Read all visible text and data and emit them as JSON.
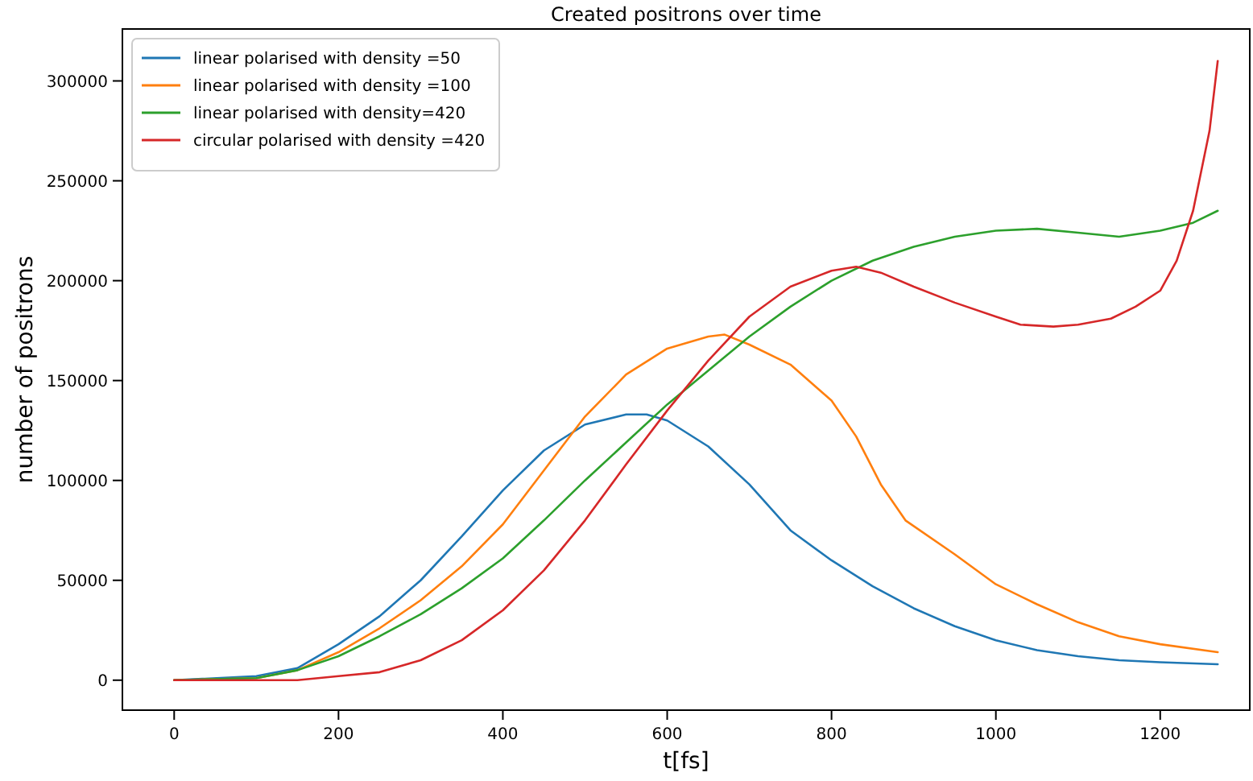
{
  "chart_data": {
    "type": "line",
    "title": "Created positrons over time",
    "xlabel": "t[fs]",
    "ylabel": "number of positrons",
    "xlim": [
      -63,
      1309
    ],
    "ylim": [
      -15000,
      326000
    ],
    "xticks": [
      0,
      200,
      400,
      600,
      800,
      1000,
      1200
    ],
    "yticks": [
      0,
      50000,
      100000,
      150000,
      200000,
      250000,
      300000
    ],
    "grid": false,
    "legend": "top left",
    "marker": "none",
    "line_style": "solid",
    "series": [
      {
        "name": "linear polarised with density =50",
        "color": "#1f77b4",
        "x": [
          0,
          100,
          150,
          200,
          250,
          300,
          350,
          400,
          450,
          500,
          550,
          575,
          600,
          650,
          700,
          750,
          800,
          850,
          900,
          950,
          1000,
          1050,
          1100,
          1150,
          1200,
          1270
        ],
        "values": [
          0,
          2000,
          6000,
          18000,
          32000,
          50000,
          72000,
          95000,
          115000,
          128000,
          133000,
          133000,
          130000,
          117000,
          98000,
          75000,
          60000,
          47000,
          36000,
          27000,
          20000,
          15000,
          12000,
          10000,
          9000,
          8000
        ]
      },
      {
        "name": "linear polarised with density =100",
        "color": "#ff7f0e",
        "x": [
          0,
          100,
          150,
          200,
          250,
          300,
          350,
          400,
          450,
          500,
          550,
          600,
          650,
          670,
          700,
          750,
          800,
          830,
          860,
          890,
          950,
          1000,
          1050,
          1100,
          1150,
          1200,
          1270
        ],
        "values": [
          0,
          1000,
          5000,
          14000,
          26000,
          40000,
          57000,
          78000,
          105000,
          132000,
          153000,
          166000,
          172000,
          173000,
          168000,
          158000,
          140000,
          122000,
          98000,
          80000,
          63000,
          48000,
          38000,
          29000,
          22000,
          18000,
          14000
        ]
      },
      {
        "name": "linear polarised with density=420",
        "color": "#2ca02c",
        "x": [
          0,
          100,
          150,
          200,
          250,
          300,
          350,
          400,
          450,
          500,
          550,
          600,
          650,
          700,
          750,
          800,
          850,
          900,
          950,
          1000,
          1050,
          1100,
          1150,
          1200,
          1240,
          1270
        ],
        "values": [
          0,
          1000,
          5000,
          12000,
          22000,
          33000,
          46000,
          61000,
          80000,
          100000,
          119000,
          138000,
          155000,
          172000,
          187000,
          200000,
          210000,
          217000,
          222000,
          225000,
          226000,
          224000,
          222000,
          225000,
          229000,
          235000
        ]
      },
      {
        "name": "circular polarised with density =420",
        "color": "#d62728",
        "x": [
          0,
          150,
          200,
          250,
          300,
          350,
          400,
          450,
          500,
          550,
          600,
          650,
          700,
          750,
          800,
          830,
          860,
          900,
          950,
          1000,
          1030,
          1070,
          1100,
          1140,
          1170,
          1200,
          1220,
          1240,
          1260,
          1270
        ],
        "values": [
          0,
          0,
          2000,
          4000,
          10000,
          20000,
          35000,
          55000,
          80000,
          108000,
          135000,
          160000,
          182000,
          197000,
          205000,
          207000,
          204000,
          197000,
          189000,
          182000,
          178000,
          177000,
          178000,
          181000,
          187000,
          195000,
          210000,
          235000,
          275000,
          310000
        ]
      }
    ]
  }
}
